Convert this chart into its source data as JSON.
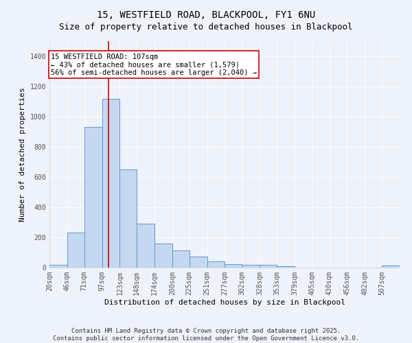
{
  "title": "15, WESTFIELD ROAD, BLACKPOOL, FY1 6NU",
  "subtitle": "Size of property relative to detached houses in Blackpool",
  "xlabel": "Distribution of detached houses by size in Blackpool",
  "ylabel": "Number of detached properties",
  "bar_color": "#c5d8f0",
  "bar_edge_color": "#5b9bd5",
  "bg_color": "#eef2fb",
  "grid_color": "#ffffff",
  "vline_x": 107,
  "annotation_text": "15 WESTFIELD ROAD: 107sqm\n← 43% of detached houses are smaller (1,579)\n56% of semi-detached houses are larger (2,040) →",
  "annotation_box_color": "#ffffff",
  "annotation_box_edge": "#cc0000",
  "vline_color": "#cc0000",
  "bins": [
    20,
    46,
    71,
    97,
    123,
    148,
    174,
    200,
    225,
    251,
    277,
    302,
    328,
    353,
    379,
    405,
    430,
    456,
    482,
    507,
    533
  ],
  "values": [
    20,
    230,
    930,
    1120,
    650,
    290,
    160,
    115,
    75,
    40,
    22,
    20,
    20,
    10,
    0,
    0,
    0,
    0,
    0,
    15
  ],
  "yticks": [
    0,
    200,
    400,
    600,
    800,
    1000,
    1200,
    1400
  ],
  "ylim": [
    0,
    1500
  ],
  "footer_text": "Contains HM Land Registry data © Crown copyright and database right 2025.\nContains public sector information licensed under the Open Government Licence v3.0.",
  "title_fontsize": 10,
  "subtitle_fontsize": 9,
  "axis_label_fontsize": 8,
  "tick_fontsize": 7,
  "annotation_fontsize": 7.5,
  "footer_fontsize": 6.5
}
